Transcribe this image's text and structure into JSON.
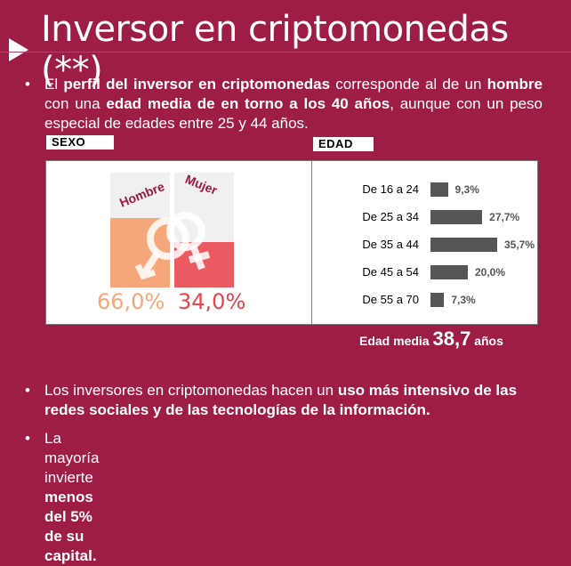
{
  "slide": {
    "title": "Inversor en criptomonedas (**)"
  },
  "intro": {
    "bullet": "•",
    "p1": "El ",
    "b1": "perfil del inversor en criptomonedas",
    "p2": " corresponde al de un ",
    "b2": "hombre",
    "p3": " con una ",
    "b3": "edad media de en torno a los 40 años",
    "p4": ", aunque con un peso especial de edades entre 25 y 44 años."
  },
  "sexo": {
    "label": "SEXO",
    "hombre_label": "Hombre",
    "mujer_label": "Mujer",
    "hombre_pct": "66,0%",
    "mujer_pct": "34,0%",
    "hombre_share": 0.66,
    "mujer_share": 0.34,
    "colors": {
      "hombre": "#f4a77a",
      "mujer": "#ec5a61",
      "word": "#a0183e"
    }
  },
  "edad": {
    "label": "EDAD",
    "rows": [
      {
        "range": "De 16 a 24",
        "value": 9.3,
        "label": "9,3%"
      },
      {
        "range": "De 25 a 34",
        "value": 27.7,
        "label": "27,7%"
      },
      {
        "range": "De 35 a 44",
        "value": 35.7,
        "label": "35,7%"
      },
      {
        "range": "De 45 a 54",
        "value": 20.0,
        "label": "20,0%"
      },
      {
        "range": "De 55 a 70",
        "value": 7.3,
        "label": "7,3%"
      }
    ],
    "media_label": "Edad media",
    "media_value": "38,7",
    "media_unit": "años"
  },
  "bullets": [
    {
      "dot": "•",
      "p1": "Los inversores en criptomonedas hacen un ",
      "b1": "uso más intensivo de las redes sociales y de las tecnologías de la información."
    },
    {
      "dot": "•",
      "p1": "La mayoría invierte ",
      "b1": "menos del 5% de su capital."
    }
  ],
  "colors": {
    "background": "#9d1d44",
    "bar": "#555555"
  }
}
